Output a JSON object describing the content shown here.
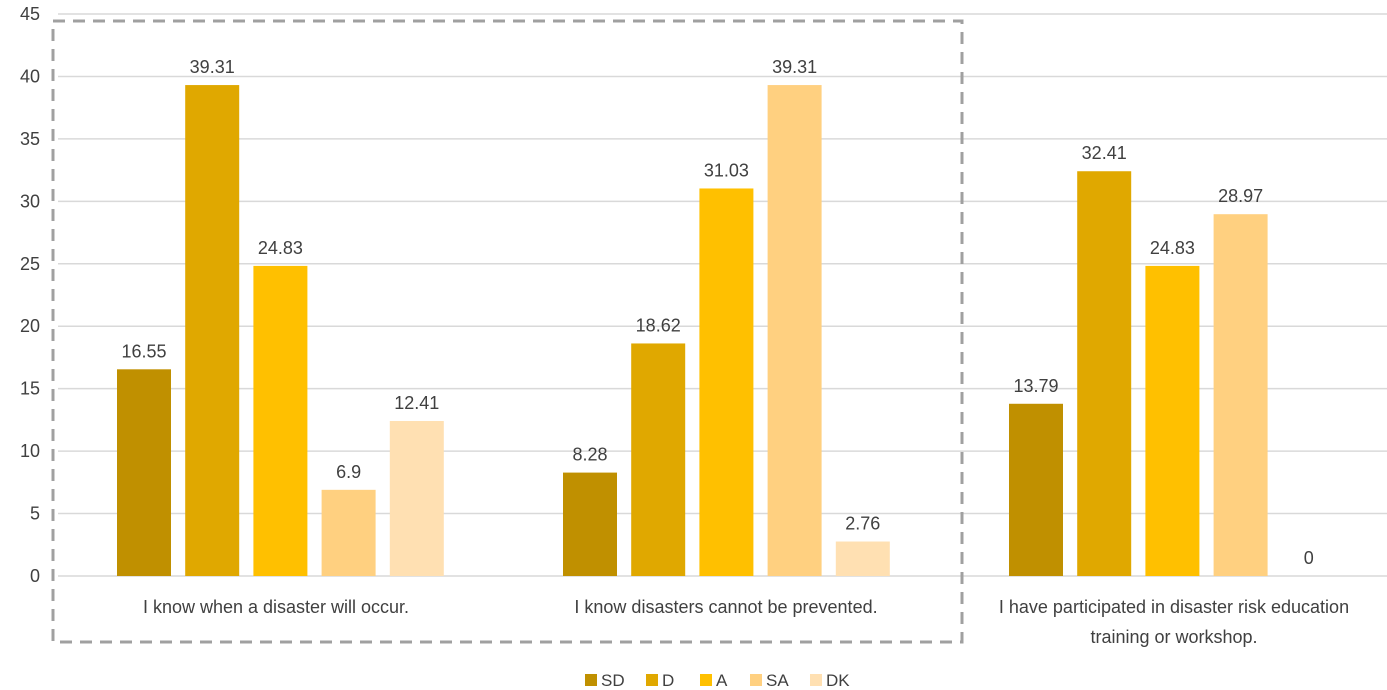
{
  "chart_data": {
    "type": "bar",
    "categories": [
      "I know when a disaster will occur.",
      "I know disasters cannot be prevented.",
      "I have participated in disaster risk education training or workshop."
    ],
    "series": [
      {
        "name": "SD",
        "color": "#C09000",
        "values": [
          16.55,
          8.28,
          13.79
        ]
      },
      {
        "name": "D",
        "color": "#E0A800",
        "values": [
          39.31,
          18.62,
          32.41
        ]
      },
      {
        "name": "A",
        "color": "#FFC000",
        "values": [
          24.83,
          31.03,
          24.83
        ]
      },
      {
        "name": "SA",
        "color": "#FFD080",
        "values": [
          6.9,
          39.31,
          28.97
        ]
      },
      {
        "name": "DK",
        "color": "#FFE0B2",
        "values": [
          12.41,
          2.76,
          0
        ]
      }
    ],
    "ylim": [
      0,
      45
    ],
    "yticks": [
      0,
      5,
      10,
      15,
      20,
      25,
      30,
      35,
      40,
      45
    ],
    "grid": true,
    "legend": "bottom-center",
    "annotation": "dashed box around first two categories"
  }
}
